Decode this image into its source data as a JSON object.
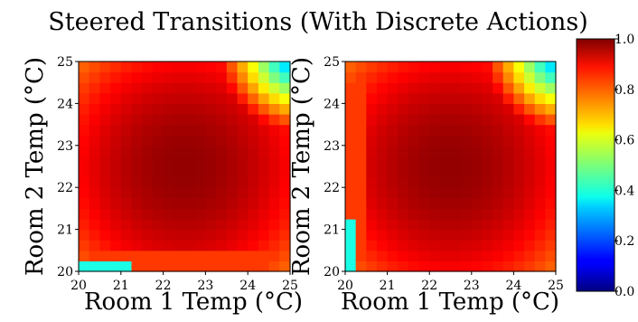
{
  "chart_data": {
    "type": "heatmap",
    "title": "Steered Transitions (With Discrete Actions)",
    "colormap": "jet",
    "colorbar": {
      "range": [
        0.0,
        1.0
      ],
      "ticks": [
        "0.0",
        "0.2",
        "0.4",
        "0.6",
        "0.8",
        "1.0"
      ]
    },
    "panels": [
      {
        "name": "left",
        "xlabel": "Room 1 Temp (°C)",
        "ylabel": "Room 2 Temp (°C)",
        "xlim": [
          20,
          25
        ],
        "ylim": [
          20,
          25
        ],
        "xticks": [
          "20",
          "21",
          "22",
          "23",
          "24",
          "25"
        ],
        "yticks": [
          "20",
          "21",
          "22",
          "23",
          "24",
          "25"
        ],
        "max_value": 0.98,
        "max_at": [
          22.5,
          22.5
        ],
        "hot_corner_value": 0.5,
        "artifact": {
          "edge": "bottom",
          "x_range": [
            20.0,
            21.2
          ],
          "y_range": [
            20.0,
            20.25
          ],
          "value": 0.4
        },
        "orange_band": {
          "edge": "bottom",
          "y_range": [
            20.0,
            20.5
          ],
          "value": 0.82
        }
      },
      {
        "name": "right",
        "xlabel": "Room 1 Temp (°C)",
        "ylabel": "Room 2 Temp (°C)",
        "xlim": [
          20,
          25
        ],
        "ylim": [
          20,
          25
        ],
        "xticks": [
          "20",
          "21",
          "22",
          "23",
          "24",
          "25"
        ],
        "yticks": [
          "20",
          "21",
          "22",
          "23",
          "24",
          "25"
        ],
        "max_value": 0.98,
        "max_at": [
          22.5,
          22.5
        ],
        "hot_corner_value": 0.5,
        "artifact": {
          "edge": "left",
          "x_range": [
            20.0,
            20.25
          ],
          "y_range": [
            20.0,
            21.2
          ],
          "value": 0.4
        },
        "orange_band": {
          "edge": "left",
          "x_range": [
            20.0,
            20.5
          ],
          "value": 0.82
        }
      }
    ]
  }
}
